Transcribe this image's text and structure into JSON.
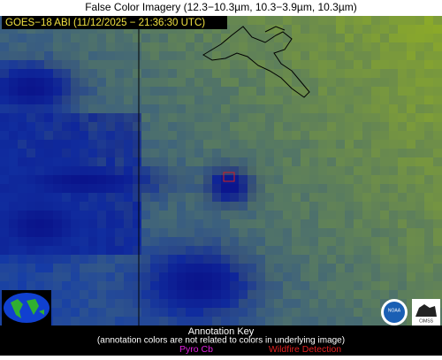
{
  "header": {
    "title": "False Color Imagery (12.3−10.3µm, 10.3−3.9µm, 10.3µm)"
  },
  "image": {
    "label": "GOES−18 ABI (11/12/2025 − 21:36:30 UTC)"
  },
  "logos": {
    "noaa": "NOAA",
    "cimss": "CIMSS"
  },
  "annotation_key": {
    "title": "Annotation Key",
    "note": "(annotation colors are not related to colors in underlying image)",
    "items": [
      "Pyro Cb",
      "Wildfire Detection"
    ]
  }
}
